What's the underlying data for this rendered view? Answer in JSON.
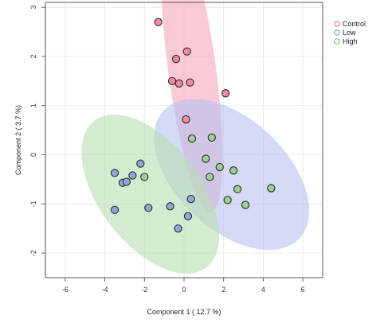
{
  "chart_data": {
    "type": "scatter",
    "title": "",
    "xlabel": "Component 1 ( 12.7 %)",
    "ylabel": "Component 2 ( 3.7 %)",
    "xlim": [
      -7,
      7
    ],
    "ylim": [
      -2.5,
      3.1
    ],
    "xticks": [
      -6,
      -4,
      -2,
      0,
      2,
      4,
      6
    ],
    "xtick_labels": [
      "-6",
      "-4",
      "-2",
      "0",
      "2",
      "4",
      "6"
    ],
    "yticks": [
      -2,
      -1,
      0,
      1,
      2,
      3
    ],
    "ytick_labels": [
      "-2",
      "-1",
      "0",
      "1",
      "2",
      "3"
    ],
    "grid": true,
    "legend_position": "top-right (outside plot)",
    "series": [
      {
        "name": "Control",
        "legend_color": "#e87a8c",
        "point_color": "#f08aa0",
        "ellipse_color": "#f7a8b8",
        "points": [
          {
            "x": -1.3,
            "y": 2.7
          },
          {
            "x": -0.4,
            "y": 1.95
          },
          {
            "x": 0.15,
            "y": 2.1
          },
          {
            "x": -0.6,
            "y": 1.5
          },
          {
            "x": -0.25,
            "y": 1.45
          },
          {
            "x": 0.3,
            "y": 1.47
          },
          {
            "x": 2.1,
            "y": 1.25
          },
          {
            "x": 0.1,
            "y": 0.72
          }
        ],
        "ellipse": {
          "center": [
            0.4,
            1.75
          ],
          "major": 3.1,
          "minor": 1.15,
          "angle_deg": -69
        }
      },
      {
        "name": "Low",
        "legend_color": "#8c96d8",
        "point_color": "#8fa7d8",
        "ellipse_color": "#b8c0f0",
        "points": [
          {
            "x": -3.5,
            "y": -0.37
          },
          {
            "x": -3.1,
            "y": -0.57
          },
          {
            "x": -2.9,
            "y": -0.55
          },
          {
            "x": -2.6,
            "y": -0.42
          },
          {
            "x": -2.2,
            "y": -0.18
          },
          {
            "x": -3.5,
            "y": -1.12
          },
          {
            "x": -1.8,
            "y": -1.08
          },
          {
            "x": -0.7,
            "y": -1.05
          },
          {
            "x": -0.3,
            "y": -1.5
          },
          {
            "x": 0.2,
            "y": -1.25
          },
          {
            "x": 0.35,
            "y": -0.9
          }
        ],
        "ellipse": {
          "center": [
            2.4,
            -0.4
          ],
          "major": 4.0,
          "minor": 1.32,
          "angle_deg": -12
        }
      },
      {
        "name": "High",
        "legend_color": "#7cc47a",
        "point_color": "#9ccf94",
        "ellipse_color": "#b6e0b0",
        "points": [
          {
            "x": -2.0,
            "y": -0.45
          },
          {
            "x": 0.4,
            "y": 0.33
          },
          {
            "x": 1.4,
            "y": 0.35
          },
          {
            "x": 1.1,
            "y": -0.08
          },
          {
            "x": 1.3,
            "y": -0.45
          },
          {
            "x": 1.8,
            "y": -0.25
          },
          {
            "x": 2.5,
            "y": -0.32
          },
          {
            "x": 2.7,
            "y": -0.7
          },
          {
            "x": 2.2,
            "y": -0.92
          },
          {
            "x": 3.1,
            "y": -1.02
          },
          {
            "x": 4.4,
            "y": -0.68
          }
        ],
        "ellipse": {
          "center": [
            -1.7,
            -0.8
          ],
          "major": 3.6,
          "minor": 1.33,
          "angle_deg": -16
        }
      }
    ]
  }
}
